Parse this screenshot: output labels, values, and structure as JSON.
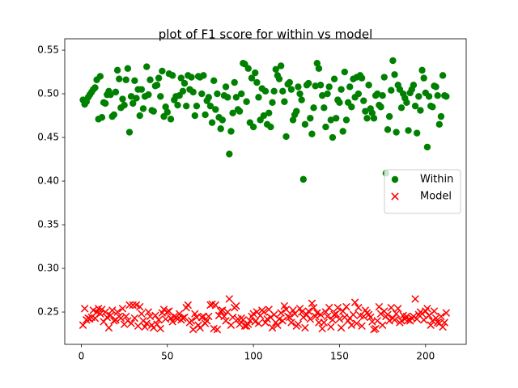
{
  "chart_data": {
    "type": "scatter",
    "title": "plot of F1 score for within vs model",
    "x": [
      1,
      2,
      3,
      4,
      5,
      6,
      7,
      8,
      9,
      10,
      11,
      12,
      13,
      14,
      15,
      16,
      17,
      18,
      19,
      20,
      21,
      22,
      23,
      24,
      25,
      26,
      27,
      28,
      29,
      30,
      31,
      32,
      33,
      34,
      35,
      36,
      37,
      38,
      39,
      40,
      41,
      42,
      43,
      44,
      45,
      46,
      47,
      48,
      49,
      50,
      51,
      52,
      53,
      54,
      55,
      56,
      57,
      58,
      59,
      60,
      61,
      62,
      63,
      64,
      65,
      66,
      67,
      68,
      69,
      70,
      71,
      72,
      73,
      74,
      75,
      76,
      77,
      78,
      79,
      80,
      81,
      82,
      83,
      84,
      85,
      86,
      87,
      88,
      89,
      90,
      91,
      92,
      93,
      94,
      95,
      96,
      97,
      98,
      99,
      100,
      101,
      102,
      103,
      104,
      105,
      106,
      107,
      108,
      109,
      110,
      111,
      112,
      113,
      114,
      115,
      116,
      117,
      118,
      119,
      120,
      121,
      122,
      123,
      124,
      125,
      126,
      127,
      128,
      129,
      130,
      131,
      132,
      133,
      134,
      135,
      136,
      137,
      138,
      139,
      140,
      141,
      142,
      143,
      144,
      145,
      146,
      147,
      148,
      149,
      150,
      151,
      152,
      153,
      154,
      155,
      156,
      157,
      158,
      159,
      160,
      161,
      162,
      163,
      164,
      165,
      166,
      167,
      168,
      169,
      170,
      171,
      172,
      173,
      174,
      175,
      176,
      177,
      178,
      179,
      180,
      181,
      182,
      183,
      184,
      185,
      186,
      187,
      188,
      189,
      190,
      191,
      192,
      193,
      194,
      195,
      196,
      197,
      198,
      199,
      200,
      201,
      202,
      203,
      204,
      205,
      206,
      207,
      208,
      209,
      210,
      211,
      212
    ],
    "series": [
      {
        "name": "Within",
        "color": "#008000",
        "marker": "circle",
        "values": [
          0.493,
          0.488,
          0.491,
          0.496,
          0.499,
          0.502,
          0.505,
          0.507,
          0.516,
          0.471,
          0.52,
          0.473,
          0.49,
          0.489,
          0.499,
          0.503,
          0.499,
          0.474,
          0.476,
          0.502,
          0.527,
          0.517,
          0.484,
          0.494,
          0.487,
          0.516,
          0.529,
          0.456,
          0.497,
          0.489,
          0.515,
          0.495,
          0.505,
          0.475,
          0.505,
          0.483,
          0.497,
          0.531,
          0.499,
          0.516,
          0.481,
          0.48,
          0.509,
          0.51,
          0.518,
          0.497,
          0.526,
          0.474,
          0.485,
          0.479,
          0.523,
          0.471,
          0.521,
          0.493,
          0.497,
          0.487,
          0.498,
          0.518,
          0.503,
          0.512,
          0.486,
          0.521,
          0.505,
          0.519,
          0.502,
          0.475,
          0.486,
          0.52,
          0.519,
          0.5,
          0.521,
          0.476,
          0.492,
          0.496,
          0.486,
          0.467,
          0.515,
          0.482,
          0.5,
          0.473,
          0.46,
          0.47,
          0.498,
          0.508,
          0.496,
          0.431,
          0.457,
          0.478,
          0.513,
          0.496,
          0.482,
          0.48,
          0.5,
          0.535,
          0.534,
          0.491,
          0.529,
          0.467,
          0.518,
          0.462,
          0.524,
          0.513,
          0.496,
          0.47,
          0.506,
          0.475,
          0.503,
          0.465,
          0.478,
          0.462,
          0.49,
          0.503,
          0.528,
          0.521,
          0.517,
          0.532,
          0.503,
          0.491,
          0.451,
          0.511,
          0.513,
          0.505,
          0.47,
          0.476,
          0.48,
          0.508,
          0.5,
          0.493,
          0.402,
          0.465,
          0.51,
          0.512,
          0.472,
          0.454,
          0.484,
          0.509,
          0.535,
          0.529,
          0.51,
          0.498,
          0.484,
          0.462,
          0.5,
          0.508,
          0.47,
          0.45,
          0.517,
          0.472,
          0.493,
          0.49,
          0.505,
          0.457,
          0.525,
          0.47,
          0.49,
          0.508,
          0.485,
          0.517,
          0.496,
          0.519,
          0.5,
          0.521,
          0.518,
          0.492,
          0.48,
          0.472,
          0.51,
          0.483,
          0.478,
          0.472,
          0.498,
          0.5,
          0.487,
          0.485,
          0.498,
          0.519,
          0.409,
          0.459,
          0.474,
          0.504,
          0.538,
          0.522,
          0.456,
          0.51,
          0.505,
          0.484,
          0.5,
          0.495,
          0.49,
          0.458,
          0.501,
          0.505,
          0.51,
          0.486,
          0.455,
          0.497,
          0.481,
          0.527,
          0.518,
          0.501,
          0.439,
          0.497,
          0.486,
          0.485,
          0.509,
          0.508,
          0.498,
          0.465,
          0.474,
          0.521,
          0.498,
          0.497
        ]
      },
      {
        "name": "Model",
        "color": "#ff0000",
        "marker": "x",
        "values": [
          0.235,
          0.254,
          0.241,
          0.243,
          0.242,
          0.244,
          0.252,
          0.243,
          0.25,
          0.254,
          0.248,
          0.253,
          0.239,
          0.25,
          0.244,
          0.232,
          0.246,
          0.252,
          0.24,
          0.241,
          0.25,
          0.245,
          0.243,
          0.254,
          0.236,
          0.245,
          0.24,
          0.258,
          0.237,
          0.258,
          0.243,
          0.258,
          0.234,
          0.256,
          0.248,
          0.24,
          0.233,
          0.237,
          0.25,
          0.245,
          0.235,
          0.232,
          0.246,
          0.236,
          0.241,
          0.231,
          0.249,
          0.253,
          0.242,
          0.25,
          0.251,
          0.243,
          0.239,
          0.245,
          0.244,
          0.242,
          0.248,
          0.241,
          0.243,
          0.244,
          0.255,
          0.258,
          0.238,
          0.24,
          0.23,
          0.248,
          0.244,
          0.235,
          0.232,
          0.244,
          0.245,
          0.237,
          0.24,
          0.245,
          0.258,
          0.259,
          0.231,
          0.258,
          0.23,
          0.246,
          0.251,
          0.252,
          0.245,
          0.24,
          0.25,
          0.265,
          0.235,
          0.244,
          0.255,
          0.257,
          0.242,
          0.236,
          0.243,
          0.241,
          0.234,
          0.234,
          0.236,
          0.24,
          0.245,
          0.248,
          0.239,
          0.25,
          0.237,
          0.246,
          0.252,
          0.25,
          0.238,
          0.242,
          0.253,
          0.244,
          0.232,
          0.247,
          0.238,
          0.235,
          0.242,
          0.249,
          0.24,
          0.257,
          0.253,
          0.245,
          0.244,
          0.238,
          0.252,
          0.248,
          0.234,
          0.236,
          0.254,
          0.25,
          0.244,
          0.232,
          0.247,
          0.251,
          0.242,
          0.26,
          0.255,
          0.245,
          0.249,
          0.238,
          0.247,
          0.231,
          0.238,
          0.25,
          0.245,
          0.255,
          0.233,
          0.241,
          0.247,
          0.248,
          0.255,
          0.242,
          0.232,
          0.251,
          0.244,
          0.256,
          0.24,
          0.243,
          0.235,
          0.247,
          0.261,
          0.237,
          0.255,
          0.246,
          0.234,
          0.245,
          0.252,
          0.249,
          0.247,
          0.244,
          0.239,
          0.23,
          0.231,
          0.24,
          0.256,
          0.248,
          0.235,
          0.251,
          0.245,
          0.247,
          0.24,
          0.255,
          0.243,
          0.241,
          0.248,
          0.254,
          0.238,
          0.24,
          0.246,
          0.242,
          0.245,
          0.241,
          0.24,
          0.243,
          0.245,
          0.265,
          0.242,
          0.247,
          0.25,
          0.248,
          0.241,
          0.251,
          0.254,
          0.246,
          0.235,
          0.24,
          0.251,
          0.243,
          0.238,
          0.237,
          0.245,
          0.233,
          0.238,
          0.249
        ]
      }
    ],
    "xlim": [
      -9.6,
      223.6
    ],
    "xticks": [
      0,
      50,
      100,
      150,
      200
    ],
    "ylim": [
      0.213,
      0.563
    ],
    "yticks": [
      0.25,
      {
        "value": 0.3,
        "label": "0.30"
      },
      0.35,
      {
        "value": 0.4,
        "label": "0.40"
      },
      0.45,
      {
        "value": 0.5,
        "label": "0.50"
      },
      0.55
    ],
    "grid": false,
    "legend": "center right"
  }
}
